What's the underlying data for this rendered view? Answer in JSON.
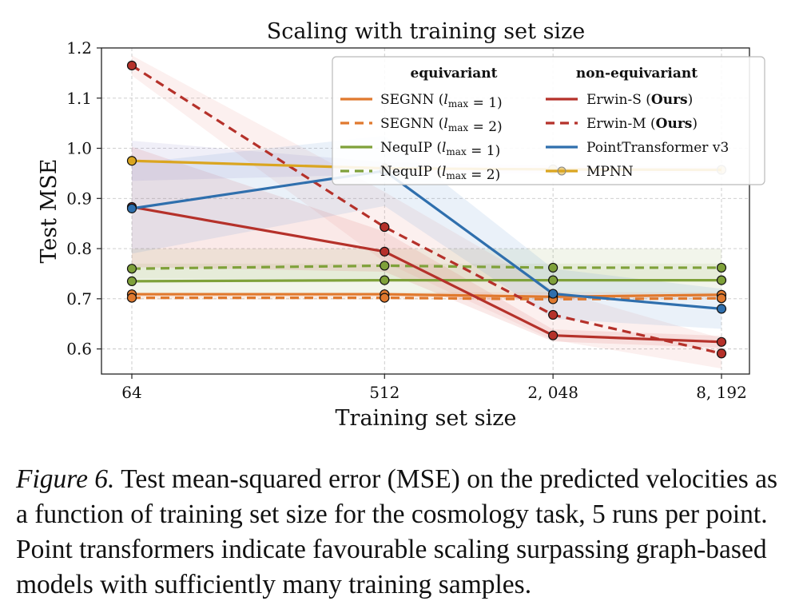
{
  "chart_data": {
    "type": "line",
    "title": "Scaling with training set size",
    "xlabel": "Training set size",
    "ylabel": "Test MSE",
    "x": [
      64,
      512,
      2048,
      8192
    ],
    "x_tick_labels": [
      "64",
      "512",
      "2, 048",
      "8, 192"
    ],
    "x_scale": "log2",
    "ylim": [
      0.55,
      1.2
    ],
    "y_ticks": [
      0.6,
      0.7,
      0.8,
      0.9,
      1.0,
      1.1,
      1.2
    ],
    "y_tick_labels": [
      "0.6",
      "0.7",
      "0.8",
      "0.9",
      "1.0",
      "1.1",
      "1.2"
    ],
    "grid": true,
    "legend": {
      "placement": "top-right",
      "groups": [
        "equivariant",
        "non-equivariant"
      ]
    },
    "series": [
      {
        "key": "segnn1",
        "name": "SEGNN (l_max = 1)",
        "name_main": "SEGNN (",
        "name_tail": " = 1)",
        "group": "equivariant",
        "color": "#e0792e",
        "dash": false,
        "values": [
          0.709,
          0.709,
          0.704,
          0.708
        ],
        "band": [
          0.703,
          0.713
        ]
      },
      {
        "key": "segnn2",
        "name": "SEGNN (l_max = 2)",
        "name_main": "SEGNN (",
        "name_tail": " = 2)",
        "group": "equivariant",
        "color": "#e0792e",
        "dash": true,
        "values": [
          0.702,
          0.702,
          0.699,
          0.701
        ],
        "band": [
          0.698,
          0.706
        ]
      },
      {
        "key": "nequip1",
        "name": "NequIP (l_max = 1)",
        "name_main": "NequIP (",
        "name_tail": " = 1)",
        "group": "equivariant",
        "color": "#7fa13a",
        "dash": false,
        "values": [
          0.735,
          0.737,
          0.737,
          0.737
        ],
        "band": [
          0.71,
          0.77
        ]
      },
      {
        "key": "nequip2",
        "name": "NequIP (l_max = 2)",
        "name_main": "NequIP (",
        "name_tail": " = 2)",
        "group": "equivariant",
        "color": "#7fa13a",
        "dash": true,
        "values": [
          0.76,
          0.766,
          0.762,
          0.762
        ],
        "band": [
          0.74,
          0.8
        ]
      },
      {
        "key": "erwins",
        "name": "Erwin-S (Ours)",
        "name_main": "Erwin-S (",
        "name_bold": "Ours",
        "name_tail": ")",
        "group": "non-equivariant",
        "color": "#b5312a",
        "dash": false,
        "values": [
          0.883,
          0.794,
          0.627,
          0.614
        ]
      },
      {
        "key": "erwinm",
        "name": "Erwin-M (Ours)",
        "name_main": "Erwin-M (",
        "name_bold": "Ours",
        "name_tail": ")",
        "group": "non-equivariant",
        "color": "#b5312a",
        "dash": true,
        "values": [
          1.165,
          0.843,
          0.668,
          0.591
        ]
      },
      {
        "key": "ptv3",
        "name": "PointTransformer v3",
        "name_main": "PointTransformer v3",
        "group": "non-equivariant",
        "color": "#2f6fad",
        "dash": false,
        "values": [
          0.88,
          0.955,
          0.71,
          0.68
        ]
      },
      {
        "key": "mpnn",
        "name": "MPNN",
        "name_main": "MPNN",
        "group": "non-equivariant",
        "color": "#daa520",
        "dash": false,
        "values": [
          0.975,
          0.96,
          0.958,
          0.957
        ]
      }
    ]
  },
  "caption": {
    "label": "Figure 6.",
    "text": " Test mean-squared error (MSE) on the predicted velocities as a function of training set size for the cosmology task, 5 runs per point. Point transformers indicate favourable scaling surpassing graph-based models with sufficiently many training samples."
  }
}
